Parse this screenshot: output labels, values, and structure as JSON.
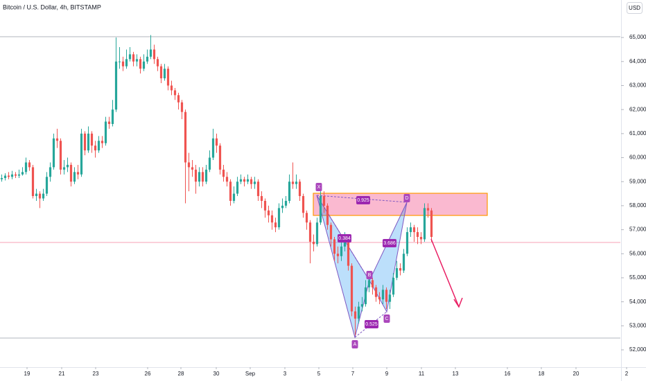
{
  "chart_data": {
    "type": "candlestick",
    "title": "Bitcoin / U.S. Dollar, 4h, BITSTAMP",
    "currency": "USD",
    "up_color": "#26a69a",
    "down_color": "#ef5350",
    "ylim": [
      51280,
      66560
    ],
    "xlim": [
      -0.5,
      178.5
    ],
    "yticks": [
      {
        "value": 52000,
        "label": "52,000"
      },
      {
        "value": 53000,
        "label": "53,000"
      },
      {
        "value": 54000,
        "label": "54,000"
      },
      {
        "value": 55000,
        "label": "55,000"
      },
      {
        "value": 56000,
        "label": "56,000"
      },
      {
        "value": 57000,
        "label": "57,000"
      },
      {
        "value": 58000,
        "label": "58,000"
      },
      {
        "value": 59000,
        "label": "59,000"
      },
      {
        "value": 60000,
        "label": "60,000"
      },
      {
        "value": 61000,
        "label": "61,000"
      },
      {
        "value": 62000,
        "label": "62,000"
      },
      {
        "value": 63000,
        "label": "63,000"
      },
      {
        "value": 64000,
        "label": "64,000"
      },
      {
        "value": 65000,
        "label": "65,000"
      }
    ],
    "xticks": [
      {
        "value": 7.3,
        "label": "19"
      },
      {
        "value": 17.3,
        "label": "21"
      },
      {
        "value": 27.1,
        "label": "23"
      },
      {
        "value": 42.1,
        "label": "26"
      },
      {
        "value": 51.7,
        "label": "28"
      },
      {
        "value": 61.9,
        "label": "30"
      },
      {
        "value": 71.7,
        "label": "Sep"
      },
      {
        "value": 81.7,
        "label": "3"
      },
      {
        "value": 91.5,
        "label": "5"
      },
      {
        "value": 101.3,
        "label": "7"
      },
      {
        "value": 111.1,
        "label": "9"
      },
      {
        "value": 121.1,
        "label": "11"
      },
      {
        "value": 130.9,
        "label": "13"
      },
      {
        "value": 145.9,
        "label": "16"
      },
      {
        "value": 155.7,
        "label": "18"
      },
      {
        "value": 165.7,
        "label": "20"
      },
      {
        "value": 180.3,
        "label": "2"
      }
    ],
    "annotations": [
      "X",
      "A",
      "B",
      "C",
      "D",
      "0.925",
      "0.384",
      "3.686",
      "0.525"
    ],
    "values": [
      [
        59100,
        59300,
        59000,
        59150
      ],
      [
        59150,
        59350,
        59050,
        59250
      ],
      [
        59250,
        59400,
        59100,
        59200
      ],
      [
        59200,
        59450,
        59100,
        59300
      ],
      [
        59300,
        59400,
        59150,
        59250
      ],
      [
        59250,
        59500,
        59150,
        59300
      ],
      [
        59300,
        59600,
        59250,
        59400
      ],
      [
        59400,
        60000,
        59300,
        59800
      ],
      [
        59800,
        59900,
        59450,
        59600
      ],
      [
        59600,
        59700,
        58300,
        58400
      ],
      [
        58400,
        58700,
        58200,
        58500
      ],
      [
        58500,
        58600,
        57900,
        58300
      ],
      [
        58300,
        58700,
        58200,
        58500
      ],
      [
        58500,
        59400,
        58400,
        59200
      ],
      [
        59200,
        59800,
        59000,
        59600
      ],
      [
        59600,
        61000,
        59500,
        60800
      ],
      [
        60800,
        61200,
        60400,
        60700
      ],
      [
        60700,
        60800,
        59300,
        59500
      ],
      [
        59500,
        59900,
        59300,
        59600
      ],
      [
        59600,
        60000,
        59400,
        59700
      ],
      [
        59700,
        59800,
        58800,
        59000
      ],
      [
        59000,
        59600,
        58900,
        59400
      ],
      [
        59400,
        59700,
        59100,
        59300
      ],
      [
        59300,
        61200,
        59200,
        61000
      ],
      [
        61000,
        61100,
        60100,
        60300
      ],
      [
        60300,
        61300,
        60200,
        61000
      ],
      [
        61000,
        61100,
        60200,
        60500
      ],
      [
        60500,
        60700,
        60000,
        60300
      ],
      [
        60300,
        60900,
        60200,
        60700
      ],
      [
        60700,
        60900,
        60400,
        60600
      ],
      [
        60600,
        61700,
        60500,
        61500
      ],
      [
        61500,
        61700,
        61200,
        61400
      ],
      [
        61400,
        62400,
        61300,
        62000
      ],
      [
        62000,
        65000,
        61900,
        64000
      ],
      [
        64000,
        64600,
        63700,
        64000
      ],
      [
        64000,
        64200,
        63600,
        63800
      ],
      [
        63800,
        64500,
        63700,
        64100
      ],
      [
        64100,
        64600,
        64000,
        64300
      ],
      [
        64300,
        64400,
        63800,
        64000
      ],
      [
        64000,
        64300,
        63800,
        64100
      ],
      [
        64100,
        64200,
        63500,
        63700
      ],
      [
        63700,
        64300,
        63600,
        64000
      ],
      [
        64000,
        64500,
        63900,
        64200
      ],
      [
        64200,
        65100,
        64100,
        64500
      ],
      [
        64500,
        64700,
        63900,
        64100
      ],
      [
        64100,
        64200,
        63600,
        63800
      ],
      [
        63800,
        63900,
        63100,
        63300
      ],
      [
        63300,
        63900,
        63200,
        63700
      ],
      [
        63700,
        63800,
        62800,
        63000
      ],
      [
        63000,
        63200,
        62600,
        62800
      ],
      [
        62800,
        62900,
        62400,
        62600
      ],
      [
        62600,
        62700,
        62000,
        62300
      ],
      [
        62300,
        62400,
        61600,
        61900
      ],
      [
        61900,
        62000,
        58100,
        59800
      ],
      [
        59800,
        60200,
        58600,
        59600
      ],
      [
        59600,
        59900,
        59200,
        59500
      ],
      [
        59500,
        59700,
        58500,
        59000
      ],
      [
        59000,
        59600,
        58800,
        59400
      ],
      [
        59400,
        59600,
        58800,
        59000
      ],
      [
        59000,
        59700,
        58900,
        59500
      ],
      [
        59500,
        60300,
        59400,
        60000
      ],
      [
        60000,
        61200,
        59900,
        60800
      ],
      [
        60800,
        61000,
        60200,
        60500
      ],
      [
        60500,
        60600,
        59300,
        59500
      ],
      [
        59500,
        59700,
        59000,
        59200
      ],
      [
        59200,
        59400,
        58800,
        59000
      ],
      [
        59000,
        59100,
        58000,
        58200
      ],
      [
        58200,
        58800,
        58100,
        58500
      ],
      [
        58500,
        59200,
        58400,
        59000
      ],
      [
        59000,
        59300,
        58900,
        59100
      ],
      [
        59100,
        59200,
        58800,
        59000
      ],
      [
        59000,
        59300,
        58900,
        59100
      ],
      [
        59100,
        59200,
        58700,
        58900
      ],
      [
        58900,
        59200,
        58700,
        59000
      ],
      [
        59000,
        59100,
        58200,
        58400
      ],
      [
        58400,
        58600,
        57900,
        58200
      ],
      [
        58200,
        58300,
        57500,
        57800
      ],
      [
        57800,
        58000,
        57300,
        57600
      ],
      [
        57600,
        57800,
        57000,
        57300
      ],
      [
        57300,
        57500,
        56900,
        57100
      ],
      [
        57100,
        58100,
        57000,
        57900
      ],
      [
        57900,
        58300,
        57700,
        58000
      ],
      [
        58000,
        58400,
        57900,
        58200
      ],
      [
        58200,
        59300,
        58100,
        59000
      ],
      [
        59000,
        59800,
        58700,
        58900
      ],
      [
        58900,
        59300,
        58700,
        59000
      ],
      [
        59000,
        59100,
        58200,
        58400
      ],
      [
        58400,
        58500,
        57500,
        57700
      ],
      [
        57700,
        57800,
        57000,
        57300
      ],
      [
        57300,
        57400,
        55600,
        56500
      ],
      [
        56500,
        56800,
        56100,
        56400
      ],
      [
        56400,
        57500,
        56300,
        57300
      ],
      [
        57300,
        58600,
        57200,
        58400
      ],
      [
        58400,
        58600,
        57700,
        58000
      ],
      [
        58000,
        58100,
        57000,
        57200
      ],
      [
        57200,
        57300,
        56300,
        56600
      ],
      [
        56600,
        56700,
        55700,
        56000
      ],
      [
        56000,
        56300,
        55600,
        55900
      ],
      [
        55900,
        56500,
        55700,
        56300
      ],
      [
        56300,
        56900,
        56100,
        56600
      ],
      [
        56600,
        56700,
        55300,
        55500
      ],
      [
        55500,
        55600,
        53400,
        53600
      ],
      [
        53600,
        53800,
        52600,
        53300
      ],
      [
        53300,
        54000,
        53100,
        53800
      ],
      [
        53800,
        54200,
        53600,
        53900
      ],
      [
        53900,
        54900,
        53800,
        54600
      ],
      [
        54600,
        55100,
        54400,
        54900
      ],
      [
        54900,
        55000,
        54300,
        54600
      ],
      [
        54600,
        54700,
        54000,
        54200
      ],
      [
        54200,
        54400,
        53900,
        54100
      ],
      [
        54100,
        54700,
        53900,
        54500
      ],
      [
        54500,
        54600,
        53700,
        54000
      ],
      [
        54000,
        54500,
        53700,
        54300
      ],
      [
        54300,
        55200,
        54200,
        55000
      ],
      [
        55000,
        55700,
        54900,
        55400
      ],
      [
        55400,
        55600,
        55100,
        55300
      ],
      [
        55300,
        56200,
        55200,
        56000
      ],
      [
        56000,
        57100,
        55900,
        56900
      ],
      [
        56900,
        57300,
        56700,
        57100
      ],
      [
        57100,
        57200,
        56500,
        56900
      ],
      [
        56900,
        57100,
        56400,
        56700
      ],
      [
        56700,
        56900,
        56400,
        56600
      ],
      [
        56600,
        58100,
        56500,
        57900
      ],
      [
        57900,
        58100,
        57500,
        57800
      ],
      [
        57800,
        57900,
        56500,
        56700
      ]
    ]
  }
}
